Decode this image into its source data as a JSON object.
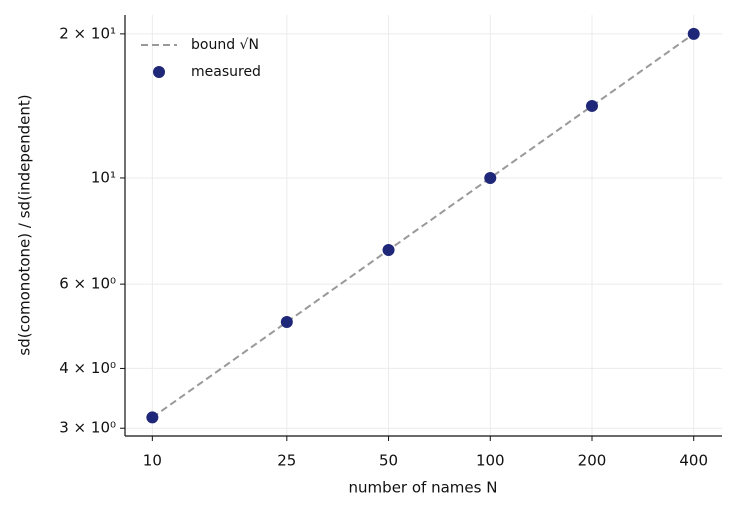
{
  "chart_data": {
    "type": "line",
    "x_label": "number of names N",
    "y_label": "sd(comonotone) / sd(independent)",
    "x": [
      10,
      25,
      50,
      100,
      200,
      400
    ],
    "series": [
      {
        "name": "bound √N",
        "color": "#999999",
        "style": "dashed",
        "values": [
          3.16,
          5,
          7.07,
          10,
          14.14,
          20
        ]
      },
      {
        "name": "measured",
        "color": "#1f2878",
        "style": "markers",
        "values": [
          3.16,
          5,
          7.07,
          10,
          14.14,
          20
        ]
      }
    ],
    "xscale": "log",
    "yscale": "log",
    "xlim": [
      8.3,
      485
    ],
    "ylim": [
      2.89,
      21.9
    ],
    "xticks": [
      10,
      25,
      50,
      100,
      200,
      400
    ],
    "yticks": [
      {
        "value": 3,
        "label": "3 × 10⁰"
      },
      {
        "value": 4,
        "label": "4 × 10⁰"
      },
      {
        "value": 6,
        "label": "6 × 10⁰"
      },
      {
        "value": 10,
        "label": "10¹"
      },
      {
        "value": 20,
        "label": "2 × 10¹"
      }
    ],
    "grid": true,
    "legend": "upper left"
  }
}
